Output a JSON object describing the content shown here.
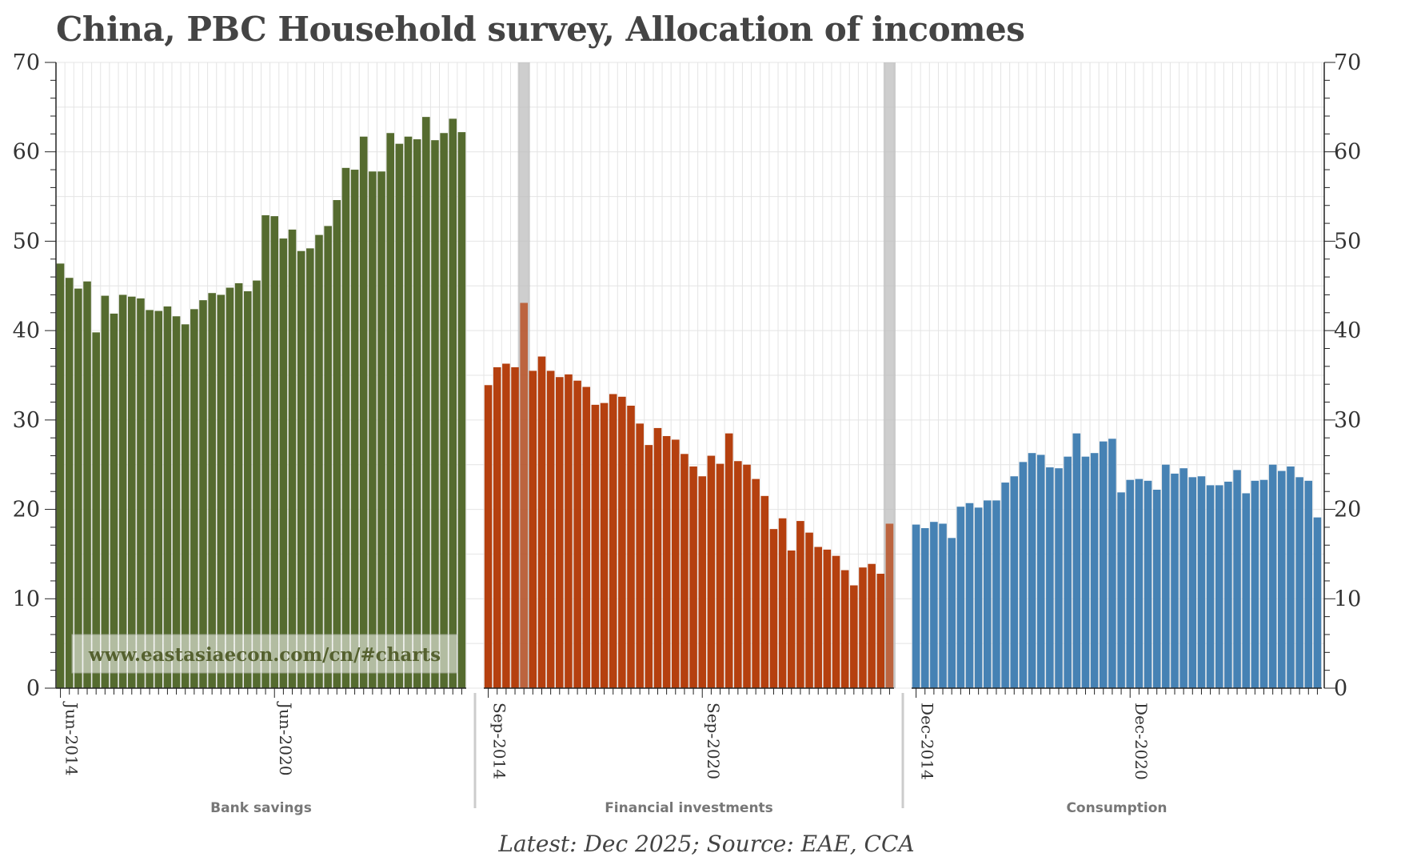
{
  "title": "China, PBC Household survey, Allocation of incomes",
  "footer": "Latest: Dec 2025; Source: EAE, CCA",
  "watermark": "www.eastasiaecon.com/cn/#charts",
  "colors": {
    "bank_savings": "#556b2f",
    "financial_investments": "#b5400f",
    "consumption": "#4682b4",
    "grid": "#e4e4e4",
    "highlight": "#bdbdbd",
    "axis": "#222222"
  },
  "chart_data": [
    {
      "type": "bar",
      "title": "Bank savings",
      "xlabel": "Bank savings",
      "ylabel": "",
      "ylim": [
        0,
        70
      ],
      "yticks": [
        0,
        10,
        20,
        30,
        40,
        50,
        60,
        70
      ],
      "tick_labels": [
        "Jun-2014",
        "Jun-2020"
      ],
      "tick_indices": [
        0,
        24
      ],
      "values": [
        47.5,
        45.9,
        44.7,
        45.5,
        39.8,
        43.9,
        41.9,
        44.0,
        43.8,
        43.6,
        42.3,
        42.2,
        42.7,
        41.6,
        40.7,
        42.4,
        43.4,
        44.2,
        44.0,
        44.8,
        45.3,
        44.4,
        45.6,
        52.9,
        52.8,
        50.3,
        51.3,
        48.9,
        49.2,
        50.7,
        51.7,
        54.6,
        58.2,
        58.0,
        61.7,
        57.8,
        57.8,
        62.1,
        60.9,
        61.7,
        61.4,
        63.9,
        61.3,
        62.1,
        63.7,
        62.2
      ]
    },
    {
      "type": "bar",
      "title": "Financial investments",
      "xlabel": "Financial investments",
      "ylabel": "",
      "ylim": [
        0,
        70
      ],
      "tick_labels": [
        "Sep-2014",
        "Sep-2020"
      ],
      "tick_indices": [
        0,
        24
      ],
      "highlight_indices": [
        4,
        45
      ],
      "values": [
        33.9,
        35.9,
        36.3,
        35.9,
        43.1,
        35.5,
        37.1,
        35.5,
        34.8,
        35.1,
        34.4,
        33.7,
        31.7,
        31.9,
        32.9,
        32.6,
        31.6,
        29.6,
        27.2,
        29.1,
        28.2,
        27.8,
        26.2,
        24.8,
        23.7,
        26.0,
        25.1,
        28.5,
        25.4,
        25.0,
        23.4,
        21.5,
        17.8,
        19.0,
        15.4,
        18.7,
        17.4,
        15.8,
        15.5,
        14.8,
        13.2,
        11.5,
        13.5,
        13.9,
        12.8,
        18.4
      ]
    },
    {
      "type": "bar",
      "title": "Consumption",
      "xlabel": "Consumption",
      "ylabel": "",
      "ylim": [
        0,
        70
      ],
      "tick_labels": [
        "Dec-2014",
        "Dec-2020"
      ],
      "tick_indices": [
        0,
        24
      ],
      "values": [
        18.3,
        17.9,
        18.6,
        18.4,
        16.8,
        20.3,
        20.7,
        20.2,
        21.0,
        21.0,
        23.0,
        23.7,
        25.3,
        26.3,
        26.1,
        24.7,
        24.6,
        25.9,
        28.5,
        25.9,
        26.3,
        27.6,
        27.9,
        21.9,
        23.3,
        23.4,
        23.2,
        22.2,
        25.0,
        24.0,
        24.6,
        23.6,
        23.7,
        22.7,
        22.7,
        23.1,
        24.4,
        21.8,
        23.2,
        23.3,
        25.0,
        24.3,
        24.8,
        23.6,
        23.2,
        19.1
      ]
    }
  ]
}
